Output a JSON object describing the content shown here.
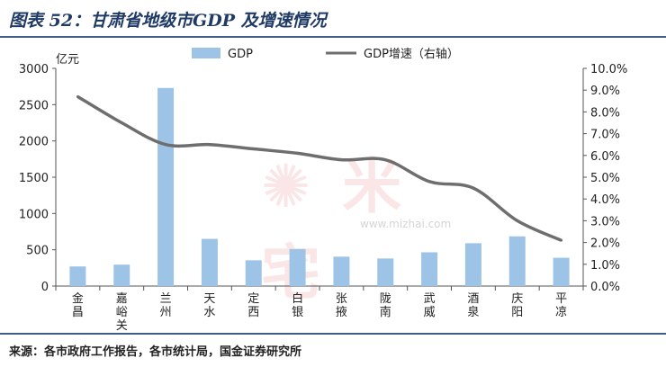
{
  "title": "图表 52：甘肃省地级市GDP 及增速情况",
  "source": "来源：各市政府工作报告，各市统计局，国金证券研究所",
  "watermark": {
    "text": "米宅",
    "url": "www.mizhai.com"
  },
  "colors": {
    "bar": "#9dc3e6",
    "line": "#6e6e6e",
    "rule": "#3f5f8a",
    "title": "#1f3a64"
  },
  "chart_data": {
    "type": "bar",
    "categories": [
      "金昌",
      "嘉峪关",
      "兰州",
      "天水",
      "定西",
      "白银",
      "张掖",
      "陇南",
      "武威",
      "酒泉",
      "庆阳",
      "平凉"
    ],
    "series": [
      {
        "name": "GDP",
        "type": "bar",
        "axis": "left",
        "values": [
          270,
          295,
          2730,
          650,
          355,
          510,
          405,
          380,
          465,
          590,
          685,
          390
        ]
      },
      {
        "name": "GDP增速（右轴）",
        "type": "line",
        "axis": "right",
        "values": [
          8.7,
          7.5,
          6.5,
          6.5,
          6.3,
          6.1,
          5.8,
          5.8,
          4.8,
          4.5,
          3.0,
          2.1
        ]
      }
    ],
    "left_axis": {
      "unit_label": "亿元",
      "ylim": [
        0,
        3000
      ],
      "ticks": [
        "0",
        "500",
        "1000",
        "1500",
        "2000",
        "2500",
        "3000"
      ]
    },
    "right_axis": {
      "ylim": [
        0,
        10
      ],
      "ticks": [
        "0.0%",
        "1.0%",
        "2.0%",
        "3.0%",
        "4.0%",
        "5.0%",
        "6.0%",
        "7.0%",
        "8.0%",
        "9.0%",
        "10.0%"
      ]
    },
    "legend_position": "top-center",
    "grid": false
  }
}
